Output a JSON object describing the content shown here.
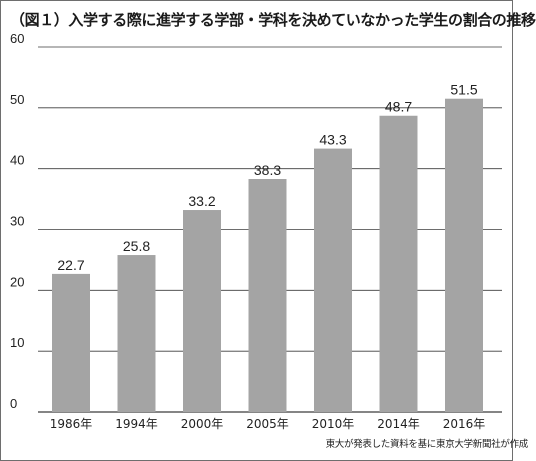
{
  "chart_data": {
    "type": "bar",
    "title": "（図１）入学する際に進学する学部・学科を決めていなかった学生の割合の推移",
    "categories": [
      "1986年",
      "1994年",
      "2000年",
      "2005年",
      "2010年",
      "2014年",
      "2016年"
    ],
    "values": [
      22.7,
      25.8,
      33.2,
      38.3,
      43.3,
      48.7,
      51.5
    ],
    "data_labels": [
      "22.7",
      "25.8",
      "33.2",
      "38.3",
      "43.3",
      "48.7",
      "51.5"
    ],
    "yticks": [
      "0",
      "10",
      "20",
      "30",
      "40",
      "50",
      "60"
    ],
    "ylim": [
      0,
      60
    ],
    "xlabel": "",
    "ylabel": "",
    "grid": true,
    "source_note": "東大が発表した資料を基に東京大学新聞社が作成"
  },
  "colors": {
    "bar": "#a4a4a4",
    "grid": "#3c3c3c",
    "text": "#222222"
  }
}
